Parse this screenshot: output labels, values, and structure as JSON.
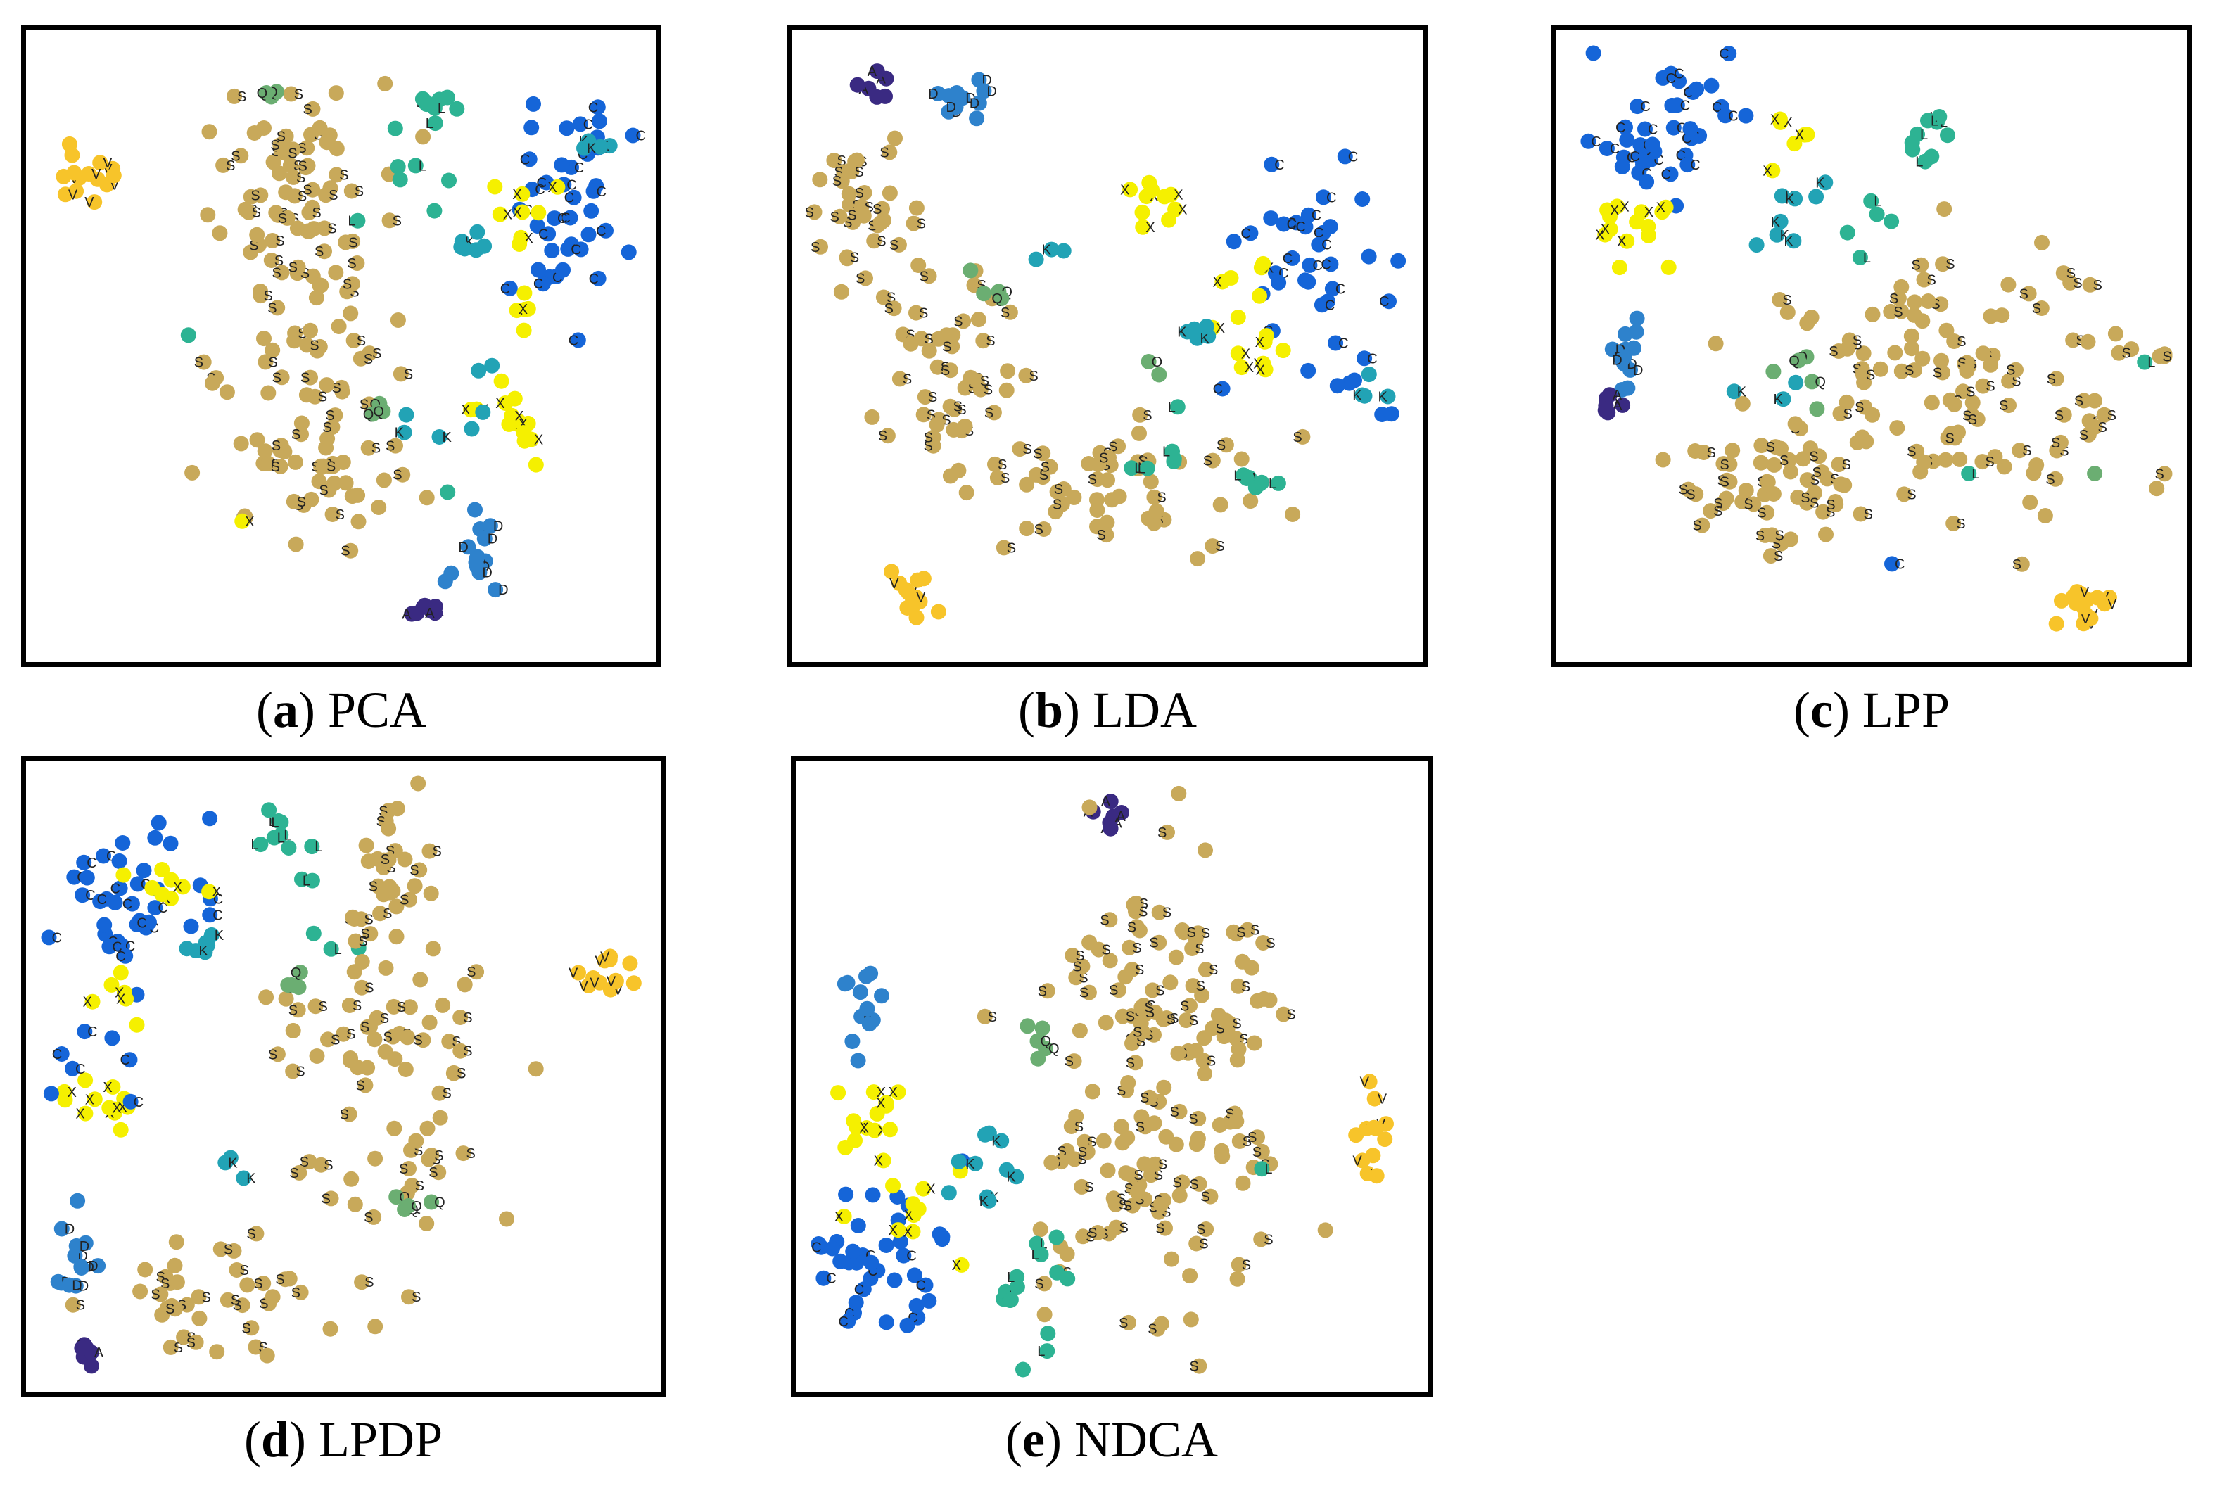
{
  "figure": {
    "panels": [
      {
        "id": "a",
        "letter": "a",
        "method": "PCA"
      },
      {
        "id": "b",
        "letter": "b",
        "method": "LDA"
      },
      {
        "id": "c",
        "letter": "c",
        "method": "LPP"
      },
      {
        "id": "d",
        "letter": "d",
        "method": "LPDP"
      },
      {
        "id": "e",
        "letter": "e",
        "method": "NDCA"
      }
    ]
  },
  "chart_data": [
    {
      "type": "scatter",
      "title": "(a) PCA",
      "xlabel": "",
      "ylabel": "",
      "xlim": [
        0,
        100
      ],
      "ylim": [
        0,
        100
      ],
      "class_colors": {
        "S": "#C8A95A",
        "C": "#1565D8",
        "X": "#F5F000",
        "V": "#F7C42A",
        "K": "#22A3B5",
        "L": "#2DB393",
        "D": "#2E82CC",
        "A": "#3A2A82",
        "Q": "#6BAE72"
      },
      "clusters": [
        {
          "label": "V",
          "cx": 7,
          "cy": 79,
          "sx": 3,
          "sy": 3,
          "n": 14
        },
        {
          "label": "S",
          "cx": 42,
          "cy": 72,
          "sx": 8,
          "sy": 11,
          "n": 80
        },
        {
          "label": "S",
          "cx": 44,
          "cy": 33,
          "sx": 8,
          "sy": 11,
          "n": 70
        },
        {
          "label": "Q",
          "cx": 38,
          "cy": 92,
          "sx": 1,
          "sy": 1,
          "n": 3
        },
        {
          "label": "L",
          "cx": 66,
          "cy": 90,
          "sx": 2,
          "sy": 2,
          "n": 8
        },
        {
          "label": "L",
          "cx": 60,
          "cy": 72,
          "sx": 5,
          "sy": 8,
          "n": 7
        },
        {
          "label": "C",
          "cx": 87,
          "cy": 72,
          "sx": 5,
          "sy": 8,
          "n": 40
        },
        {
          "label": "X",
          "cx": 82,
          "cy": 72,
          "sx": 3,
          "sy": 3,
          "n": 8
        },
        {
          "label": "X",
          "cx": 81,
          "cy": 56,
          "sx": 1,
          "sy": 2,
          "n": 5
        },
        {
          "label": "K",
          "cx": 72,
          "cy": 67,
          "sx": 2,
          "sy": 1,
          "n": 6
        },
        {
          "label": "K",
          "cx": 91,
          "cy": 83,
          "sx": 2,
          "sy": 1,
          "n": 4
        },
        {
          "label": "X",
          "cx": 78,
          "cy": 38,
          "sx": 3,
          "sy": 3,
          "n": 14
        },
        {
          "label": "K",
          "cx": 77,
          "cy": 43,
          "sx": 4,
          "sy": 4,
          "n": 4
        },
        {
          "label": "Q",
          "cx": 56,
          "cy": 40,
          "sx": 1,
          "sy": 1,
          "n": 3
        },
        {
          "label": "K",
          "cx": 60,
          "cy": 33,
          "sx": 3,
          "sy": 5,
          "n": 3
        },
        {
          "label": "D",
          "cx": 73,
          "cy": 15,
          "sx": 2,
          "sy": 4,
          "n": 14
        },
        {
          "label": "A",
          "cx": 64,
          "cy": 6,
          "sx": 2,
          "sy": 1,
          "n": 7
        },
        {
          "label": "L",
          "cx": 67,
          "cy": 24,
          "sx": 1,
          "sy": 1,
          "n": 1
        },
        {
          "label": "L",
          "cx": 25,
          "cy": 53,
          "sx": 1,
          "sy": 1,
          "n": 1
        },
        {
          "label": "X",
          "cx": 33,
          "cy": 21,
          "sx": 1,
          "sy": 1,
          "n": 1
        }
      ]
    },
    {
      "type": "scatter",
      "title": "(b) LDA",
      "xlabel": "",
      "ylabel": "",
      "xlim": [
        0,
        100
      ],
      "ylim": [
        0,
        100
      ],
      "clusters": [
        {
          "label": "A",
          "cx": 11,
          "cy": 93,
          "sx": 1.5,
          "sy": 1.5,
          "n": 6
        },
        {
          "label": "D",
          "cx": 26,
          "cy": 91,
          "sx": 3,
          "sy": 1.5,
          "n": 11
        },
        {
          "label": "S",
          "cx": 10,
          "cy": 72,
          "sx": 5,
          "sy": 7,
          "n": 35
        },
        {
          "label": "S",
          "cx": 24,
          "cy": 47,
          "sx": 7,
          "sy": 7,
          "n": 45
        },
        {
          "label": "S",
          "cx": 48,
          "cy": 27,
          "sx": 15,
          "sy": 6,
          "n": 55
        },
        {
          "label": "X",
          "cx": 58,
          "cy": 74,
          "sx": 2,
          "sy": 2,
          "n": 10
        },
        {
          "label": "C",
          "cx": 84,
          "cy": 60,
          "sx": 7,
          "sy": 9,
          "n": 38
        },
        {
          "label": "X",
          "cx": 72,
          "cy": 61,
          "sx": 3,
          "sy": 4,
          "n": 6
        },
        {
          "label": "X",
          "cx": 76,
          "cy": 48,
          "sx": 4,
          "sy": 3,
          "n": 8
        },
        {
          "label": "K",
          "cx": 65,
          "cy": 52,
          "sx": 2,
          "sy": 2,
          "n": 5
        },
        {
          "label": "K",
          "cx": 93,
          "cy": 42,
          "sx": 1.5,
          "sy": 1.5,
          "n": 4
        },
        {
          "label": "L",
          "cx": 75,
          "cy": 27,
          "sx": 2,
          "sy": 1,
          "n": 7
        },
        {
          "label": "L",
          "cx": 55,
          "cy": 33,
          "sx": 6,
          "sy": 3,
          "n": 6
        },
        {
          "label": "Q",
          "cx": 29,
          "cy": 61,
          "sx": 3,
          "sy": 2,
          "n": 4
        },
        {
          "label": "Q",
          "cx": 58,
          "cy": 45,
          "sx": 1,
          "sy": 1,
          "n": 2
        },
        {
          "label": "K",
          "cx": 40,
          "cy": 66,
          "sx": 3,
          "sy": 1,
          "n": 3
        },
        {
          "label": "V",
          "cx": 17,
          "cy": 7,
          "sx": 2,
          "sy": 3,
          "n": 14
        }
      ]
    },
    {
      "type": "scatter",
      "title": "(c) LPP",
      "xlabel": "",
      "ylabel": "",
      "xlim": [
        0,
        100
      ],
      "ylim": [
        0,
        100
      ],
      "clusters": [
        {
          "label": "C",
          "cx": 17,
          "cy": 85,
          "sx": 8,
          "sy": 7,
          "n": 38
        },
        {
          "label": "X",
          "cx": 13,
          "cy": 70,
          "sx": 5,
          "sy": 3,
          "n": 14
        },
        {
          "label": "X",
          "cx": 36,
          "cy": 81,
          "sx": 3,
          "sy": 4,
          "n": 6
        },
        {
          "label": "K",
          "cx": 38,
          "cy": 73,
          "sx": 4,
          "sy": 4,
          "n": 8
        },
        {
          "label": "L",
          "cx": 61,
          "cy": 84,
          "sx": 2,
          "sy": 3,
          "n": 9
        },
        {
          "label": "L",
          "cx": 46,
          "cy": 69,
          "sx": 5,
          "sy": 5,
          "n": 5
        },
        {
          "label": "D",
          "cx": 9,
          "cy": 51,
          "sx": 1.5,
          "sy": 5,
          "n": 12
        },
        {
          "label": "A",
          "cx": 7,
          "cy": 40,
          "sx": 1.5,
          "sy": 1,
          "n": 6
        },
        {
          "label": "S",
          "cx": 33,
          "cy": 26,
          "sx": 8,
          "sy": 6,
          "n": 50
        },
        {
          "label": "S",
          "cx": 66,
          "cy": 44,
          "sx": 15,
          "sy": 12,
          "n": 120
        },
        {
          "label": "Q",
          "cx": 40,
          "cy": 46,
          "sx": 4,
          "sy": 3,
          "n": 5
        },
        {
          "label": "K",
          "cx": 36,
          "cy": 42,
          "sx": 4,
          "sy": 4,
          "n": 3
        },
        {
          "label": "L",
          "cx": 95,
          "cy": 47,
          "sx": 1,
          "sy": 1,
          "n": 1
        },
        {
          "label": "Q",
          "cx": 90,
          "cy": 30,
          "sx": 1,
          "sy": 1,
          "n": 1
        },
        {
          "label": "L",
          "cx": 66,
          "cy": 28,
          "sx": 1,
          "sy": 1,
          "n": 1
        },
        {
          "label": "C",
          "cx": 52,
          "cy": 12,
          "sx": 1,
          "sy": 1,
          "n": 1
        },
        {
          "label": "V",
          "cx": 86,
          "cy": 8,
          "sx": 3,
          "sy": 2,
          "n": 14
        }
      ]
    },
    {
      "type": "scatter",
      "title": "(d) LPDP",
      "xlabel": "",
      "ylabel": "",
      "xlim": [
        0,
        100
      ],
      "ylim": [
        0,
        100
      ],
      "clusters": [
        {
          "label": "C",
          "cx": 14,
          "cy": 80,
          "sx": 6,
          "sy": 8,
          "n": 38
        },
        {
          "label": "X",
          "cx": 20,
          "cy": 82,
          "sx": 3,
          "sy": 3,
          "n": 8
        },
        {
          "label": "X",
          "cx": 12,
          "cy": 63,
          "sx": 2,
          "sy": 3,
          "n": 6
        },
        {
          "label": "X",
          "cx": 9,
          "cy": 46,
          "sx": 4,
          "sy": 2,
          "n": 12
        },
        {
          "label": "C",
          "cx": 11,
          "cy": 50,
          "sx": 6,
          "sy": 3,
          "n": 6
        },
        {
          "label": "K",
          "cx": 27,
          "cy": 71,
          "sx": 2,
          "sy": 1,
          "n": 6
        },
        {
          "label": "L",
          "cx": 40,
          "cy": 90,
          "sx": 2,
          "sy": 3,
          "n": 9
        },
        {
          "label": "L",
          "cx": 45,
          "cy": 75,
          "sx": 4,
          "sy": 5,
          "n": 4
        },
        {
          "label": "S",
          "cx": 58,
          "cy": 84,
          "sx": 3,
          "sy": 6,
          "n": 30
        },
        {
          "label": "S",
          "cx": 58,
          "cy": 50,
          "sx": 9,
          "sy": 12,
          "n": 70
        },
        {
          "label": "S",
          "cx": 30,
          "cy": 13,
          "sx": 9,
          "sy": 5,
          "n": 40
        },
        {
          "label": "Q",
          "cx": 42,
          "cy": 65,
          "sx": 2,
          "sy": 2,
          "n": 4
        },
        {
          "label": "Q",
          "cx": 61,
          "cy": 29,
          "sx": 2,
          "sy": 1.5,
          "n": 4
        },
        {
          "label": "K",
          "cx": 33,
          "cy": 35,
          "sx": 3,
          "sy": 3,
          "n": 3
        },
        {
          "label": "V",
          "cx": 93,
          "cy": 67,
          "sx": 3,
          "sy": 2,
          "n": 12
        },
        {
          "label": "D",
          "cx": 5,
          "cy": 18,
          "sx": 1.5,
          "sy": 4,
          "n": 12
        },
        {
          "label": "A",
          "cx": 7,
          "cy": 4,
          "sx": 1.5,
          "sy": 1,
          "n": 6
        }
      ]
    },
    {
      "type": "scatter",
      "title": "(e) NDCA",
      "xlabel": "",
      "ylabel": "",
      "xlim": [
        0,
        100
      ],
      "ylim": [
        0,
        100
      ],
      "clusters": [
        {
          "label": "A",
          "cx": 50,
          "cy": 93,
          "sx": 1.5,
          "sy": 1.5,
          "n": 7
        },
        {
          "label": "S",
          "cx": 60,
          "cy": 60,
          "sx": 9,
          "sy": 15,
          "n": 110
        },
        {
          "label": "S",
          "cx": 57,
          "cy": 28,
          "sx": 9,
          "sy": 12,
          "n": 60
        },
        {
          "label": "D",
          "cx": 9,
          "cy": 61,
          "sx": 2,
          "sy": 4,
          "n": 12
        },
        {
          "label": "X",
          "cx": 10,
          "cy": 44,
          "sx": 3,
          "sy": 3,
          "n": 14
        },
        {
          "label": "C",
          "cx": 12,
          "cy": 20,
          "sx": 6,
          "sy": 8,
          "n": 38
        },
        {
          "label": "X",
          "cx": 18,
          "cy": 25,
          "sx": 5,
          "sy": 5,
          "n": 10
        },
        {
          "label": "K",
          "cx": 27,
          "cy": 31,
          "sx": 4,
          "sy": 7,
          "n": 10
        },
        {
          "label": "L",
          "cx": 37,
          "cy": 15,
          "sx": 3,
          "sy": 7,
          "n": 14
        },
        {
          "label": "Q",
          "cx": 38,
          "cy": 55,
          "sx": 3,
          "sy": 3,
          "n": 5
        },
        {
          "label": "L",
          "cx": 74,
          "cy": 35,
          "sx": 1,
          "sy": 1,
          "n": 1
        },
        {
          "label": "V",
          "cx": 93,
          "cy": 39,
          "sx": 1.5,
          "sy": 4,
          "n": 12
        }
      ]
    }
  ]
}
